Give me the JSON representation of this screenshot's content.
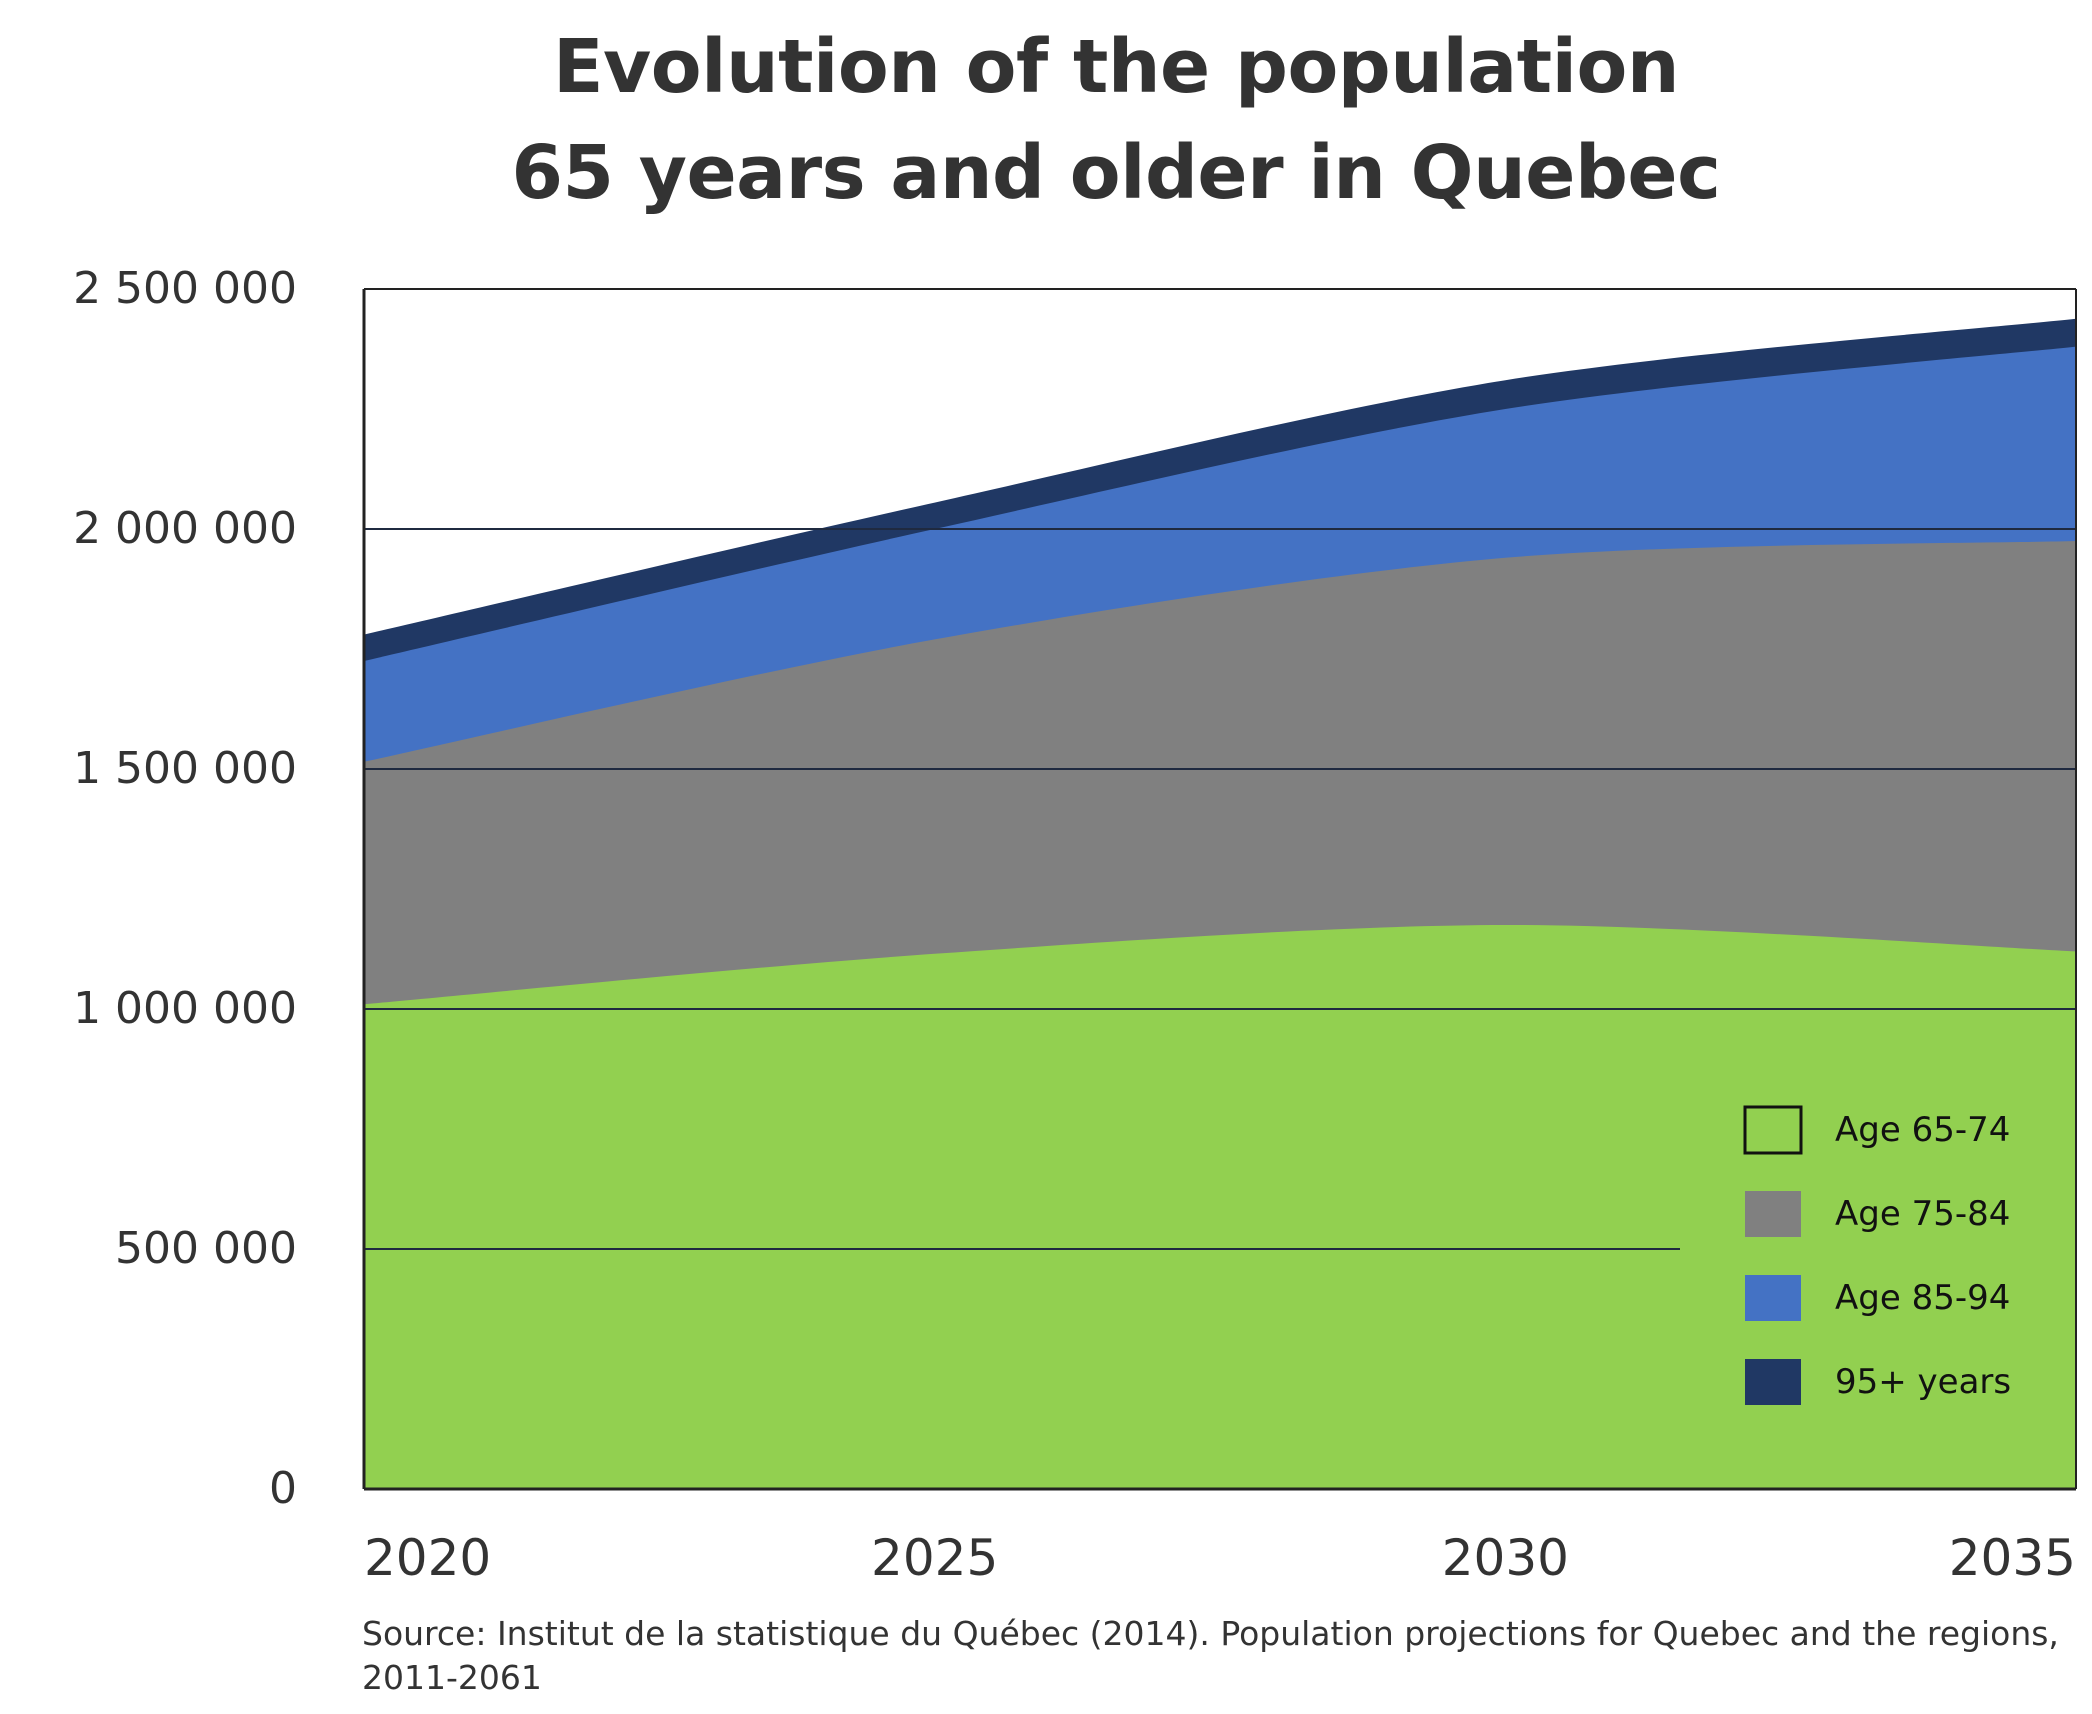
{
  "title_line1": "Evolution of the population",
  "title_line2": "65 years and older in Quebec",
  "source": "Source: Institut de la statistique du Québec (2014). Population projections for Quebec and the regions, 2011-2061",
  "chart_data": {
    "type": "area",
    "stacked": true,
    "title": "Evolution of the population 65 years and older in Quebec",
    "xlabel": "",
    "ylabel": "",
    "x": [
      2020,
      2025,
      2030,
      2035
    ],
    "x_tick_labels": [
      "2020",
      "2025",
      "2030",
      "2035"
    ],
    "ylim": [
      0,
      2500000
    ],
    "y_ticks": [
      0,
      500000,
      1000000,
      1500000,
      2000000,
      2500000
    ],
    "y_tick_labels": [
      "0",
      "500 000",
      "1 000 000",
      "1 500 000",
      "2 000 000",
      "2 500 000"
    ],
    "grid": true,
    "legend_position": "lower-right",
    "series": [
      {
        "name": "Age 65-74",
        "color": "#92d050",
        "values": [
          1010000,
          1115000,
          1175000,
          1120000
        ]
      },
      {
        "name": "Age 75-84",
        "color": "#808080",
        "values": [
          505000,
          655000,
          765000,
          855000
        ]
      },
      {
        "name": "Age 85-94",
        "color": "#4472c4",
        "values": [
          210000,
          230000,
          310000,
          405000
        ]
      },
      {
        "name": "95+ years",
        "color": "#203864",
        "values": [
          55000,
          55000,
          60000,
          58000
        ]
      }
    ]
  }
}
